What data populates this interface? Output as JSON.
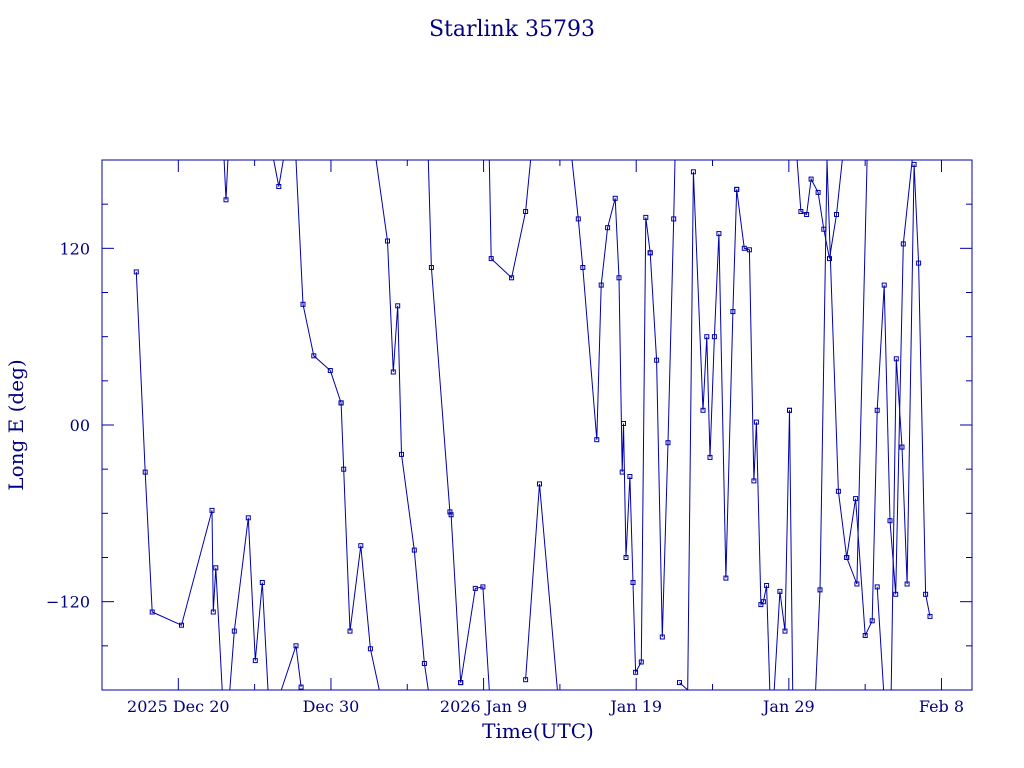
{
  "chart_data": {
    "type": "line",
    "title": "Starlink 35793",
    "xlabel": "Time(UTC)",
    "ylabel": "Long E (deg)",
    "x_range": [
      "2025-12-15",
      "2026-02-10"
    ],
    "ylim": [
      -180,
      180
    ],
    "x_ticks": [
      "2025 Dec 20",
      "Dec 30",
      "2026 Jan  9",
      "Jan 19",
      "Jan 29",
      "Feb  8"
    ],
    "y_ticks": [
      "−120",
      "00",
      "120"
    ],
    "grid": false,
    "color": "#0000aa",
    "series": [
      {
        "x": [
          "2025-12-17 06:00",
          "2025-12-17 20:00",
          "2025-12-18 07:00",
          "2025-12-20 05:00",
          "2025-12-22 05:00",
          "2025-12-22 07:00",
          "2025-12-22 11:00",
          "2025-12-22 21:00",
          "2025-12-23 00:00"
        ],
        "y": [
          104,
          -32,
          -127,
          -136,
          -58,
          -127,
          -97,
          -180,
          -180
        ]
      },
      {
        "x": [
          "2025-12-23 00:00",
          "2025-12-23 03:00",
          "2025-12-23 06:00"
        ],
        "y": [
          180,
          153,
          180
        ]
      },
      {
        "x": [
          "2025-12-23 09:00",
          "2025-12-23 16:00",
          "2025-12-24 14:00",
          "2025-12-25 01:00",
          "2025-12-25 12:00",
          "2025-12-25 21:00",
          "2025-12-26 18:00",
          "2025-12-27 17:00",
          "2025-12-28 01:00"
        ],
        "y": [
          -180,
          -140,
          -63,
          -160,
          -107,
          -180,
          -180,
          -150,
          -178
        ]
      },
      {
        "x": [
          "2025-12-26 06:00",
          "2025-12-26 14:00",
          "2025-12-26 21:00"
        ],
        "y": [
          180,
          162,
          180
        ]
      },
      {
        "x": [
          "2025-12-27 17:00",
          "2025-12-28 04:00",
          "2025-12-28 21:00",
          "2025-12-29 23:00",
          "2025-12-30 16:00"
        ],
        "y": [
          180,
          82,
          47,
          37,
          15
        ]
      },
      {
        "x": [
          "2025-12-30 16:00",
          "2025-12-30 20:00",
          "2025-12-31 06:00",
          "2025-12-31 23:00",
          "2026-01-01 14:00",
          "2026-01-02 04:00"
        ],
        "y": [
          15,
          -30,
          -140,
          -82,
          -152,
          -180
        ]
      },
      {
        "x": [
          "2026-01-01 23:00",
          "2026-01-02 17:00",
          "2026-01-03 02:00",
          "2026-01-03 09:00",
          "2026-01-03 15:00",
          "2026-01-04 11:00",
          "2026-01-05 03:00",
          "2026-01-05 09:00"
        ],
        "y": [
          180,
          125,
          36,
          81,
          -20,
          -85,
          -162,
          -180
        ]
      },
      {
        "x": [
          "2026-01-05 09:00",
          "2026-01-05 14:00",
          "2026-01-06 19:00",
          "2026-01-06 21:00",
          "2026-01-07 12:00"
        ],
        "y": [
          180,
          107,
          -59,
          -61,
          -175
        ]
      },
      {
        "x": [
          "2026-01-07 12:00",
          "2026-01-08 11:00",
          "2026-01-08 23:00",
          "2026-01-09 09:00"
        ],
        "y": [
          -175,
          -111,
          -110,
          -180
        ]
      },
      {
        "x": [
          "2026-01-09 09:00",
          "2026-01-09 12:00",
          "2026-01-10 20:00",
          "2026-01-11 18:00",
          "2026-01-12 02:00"
        ],
        "y": [
          180,
          113,
          100,
          145,
          180
        ]
      },
      {
        "x": [
          "2026-01-11 18:00",
          "2026-01-12 16:00",
          "2026-01-13 20:00",
          "2026-01-14 19:00"
        ],
        "y": [
          -173,
          -40,
          -180,
          -180
        ]
      },
      {
        "x": [
          "2026-01-14 19:00",
          "2026-01-15 05:00",
          "2026-01-15 12:00",
          "2026-01-16 10:00",
          "2026-01-16 17:00",
          "2026-01-17 03:00",
          "2026-01-17 15:00",
          "2026-01-17 21:00",
          "2026-01-18 02:00",
          "2026-01-18 04:00",
          "2026-01-18 08:00",
          "2026-01-18 14:00",
          "2026-01-18 19:00"
        ],
        "y": [
          180,
          140,
          107,
          -10,
          95,
          134,
          154,
          100,
          -32,
          1,
          -90,
          -35,
          -107
        ]
      },
      {
        "x": [
          "2026-01-18 19:00",
          "2026-01-18 23:00",
          "2026-01-19 08:00",
          "2026-01-19 15:00",
          "2026-01-19 22:00"
        ],
        "y": [
          -107,
          -168,
          -161,
          141,
          117
        ]
      },
      {
        "x": [
          "2026-01-19 22:00",
          "2026-01-20 08:00",
          "2026-01-20 17:00",
          "2026-01-21 02:00",
          "2026-01-21 11:00",
          "2026-01-21 13:00",
          "2026-01-22 02:00"
        ],
        "y": [
          117,
          44,
          -144,
          -12,
          140,
          180,
          180
        ]
      },
      {
        "x": [
          "2026-01-21 20:00",
          "2026-01-22 09:00",
          "2026-01-22 18:00",
          "2026-01-23 09:00",
          "2026-01-23 15:00",
          "2026-01-23 20:00",
          "2026-01-24 03:00",
          "2026-01-24 10:00",
          "2026-01-24 21:00",
          "2026-01-25 08:00",
          "2026-01-25 14:00"
        ],
        "y": [
          -175,
          -180,
          172,
          10,
          60,
          -22,
          60,
          130,
          -104,
          77,
          160
        ]
      },
      {
        "x": [
          "2026-01-25 14:00",
          "2026-01-26 02:00",
          "2026-01-26 10:00",
          "2026-01-26 17:00",
          "2026-01-26 21:00",
          "2026-01-27 04:00",
          "2026-01-27 08:00",
          "2026-01-27 13:00",
          "2026-01-27 18:00",
          "2026-01-28 01:00",
          "2026-01-28 10:00",
          "2026-01-28 18:00",
          "2026-01-29 01:00"
        ],
        "y": [
          160,
          120,
          119,
          -38,
          2,
          -122,
          -120,
          -109,
          -180,
          -180,
          -113,
          -140,
          10
        ]
      },
      {
        "x": [
          "2026-01-29 01:00",
          "2026-01-29 06:00",
          "2026-01-29 13:00"
        ],
        "y": [
          10,
          -180,
          -180
        ]
      },
      {
        "x": [
          "2026-01-29 13:00",
          "2026-01-29 19:00",
          "2026-01-30 04:00",
          "2026-01-30 11:00",
          "2026-01-30 22:00",
          "2026-01-31 07:00",
          "2026-01-31 16:00",
          "2026-02-01 03:00",
          "2026-02-01 12:00"
        ],
        "y": [
          180,
          145,
          143,
          167,
          158,
          133,
          113,
          143,
          180
        ]
      },
      {
        "x": [
          "2026-01-30 18:00",
          "2026-01-31 01:00",
          "2026-01-31 12:00",
          "2026-02-01 06:00",
          "2026-02-01 19:00",
          "2026-02-02 11:00",
          "2026-02-03 03:00"
        ],
        "y": [
          -180,
          -112,
          180,
          -45,
          -90,
          -108,
          180
        ]
      },
      {
        "x": [
          "2026-02-01 19:00",
          "2026-02-02 09:00",
          "2026-02-03 00:00",
          "2026-02-03 11:00",
          "2026-02-03 19:00",
          "2026-02-04 06:00",
          "2026-02-04 15:00",
          "2026-02-05 00:00",
          "2026-02-05 12:00",
          "2026-02-06 02:00"
        ],
        "y": [
          -90,
          -50,
          -143,
          -133,
          10,
          95,
          -65,
          -115,
          123,
          180
        ]
      },
      {
        "x": [
          "2026-02-03 19:00",
          "2026-02-04 05:00",
          "2026-02-04 17:00",
          "2026-02-05 01:00",
          "2026-02-05 10:00",
          "2026-02-05 18:00",
          "2026-02-06 05:00",
          "2026-02-06 12:00",
          "2026-02-06 23:00",
          "2026-02-07 06:00"
        ],
        "y": [
          -110,
          -180,
          -180,
          45,
          -15,
          -108,
          177,
          110,
          -115,
          -130
        ]
      }
    ]
  }
}
